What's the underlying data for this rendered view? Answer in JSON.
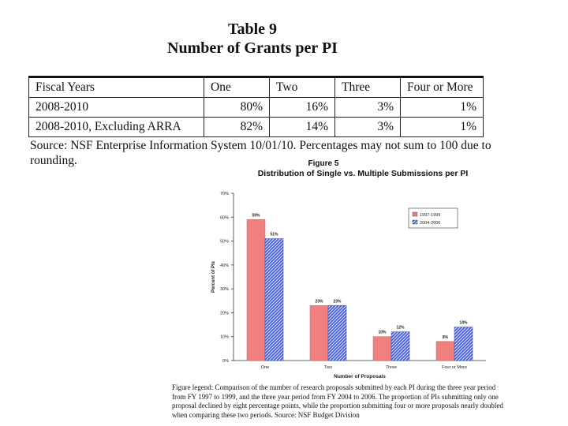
{
  "table": {
    "title": "Table 9",
    "subtitle": "Number of Grants per PI",
    "headers": [
      "Fiscal Years",
      "One",
      "Two",
      "Three",
      "Four or More"
    ],
    "rows": [
      [
        "2008-2010",
        "80%",
        "16%",
        "3%",
        "1%"
      ],
      [
        "2008-2010, Excluding ARRA",
        "82%",
        "14%",
        "3%",
        "1%"
      ]
    ],
    "source_line1": "Source: NSF Enterprise Information System 10/01/10. Percentages may not sum to 100 due to",
    "source_line2": "rounding."
  },
  "figure": {
    "label": "Figure 5",
    "title": "Distribution of Single vs. Multiple Submissions per PI",
    "legend_line1": "Figure legend:  Comparison of the number of research proposals submitted by each PI during the three year period",
    "legend_line2": "from FY 1997 to 1999, and the three year period from FY 2004 to 2006.  The proportion of PIs submitting only one",
    "legend_line3": "proposal declined by eight percentage points, while the proportion submitting four or more proposals nearly doubled",
    "legend_line4": "when comparing these two periods.  Source:  NSF Budget Division"
  },
  "colors": {
    "series1": "#f08080",
    "series2": "#4a5fd0"
  },
  "chart_data": {
    "type": "bar",
    "categories": [
      "One",
      "Two",
      "Three",
      "Four or More"
    ],
    "series": [
      {
        "name": "1997-1999",
        "values": [
          59,
          23,
          10,
          8
        ],
        "labels": [
          "59%",
          "23%",
          "10%",
          "8%"
        ]
      },
      {
        "name": "2004-2006",
        "values": [
          51,
          23,
          12,
          14
        ],
        "labels": [
          "51%",
          "23%",
          "12%",
          "14%"
        ]
      }
    ],
    "title": "Distribution of Single vs. Multiple Submissions per PI",
    "xlabel": "Number of Proposals",
    "ylabel": "Percent of PIs",
    "ylim": [
      0,
      70
    ],
    "yticks": [
      "0%",
      "10%",
      "20%",
      "30%",
      "40%",
      "50%",
      "60%",
      "70%"
    ],
    "legend_position": "top-right"
  }
}
